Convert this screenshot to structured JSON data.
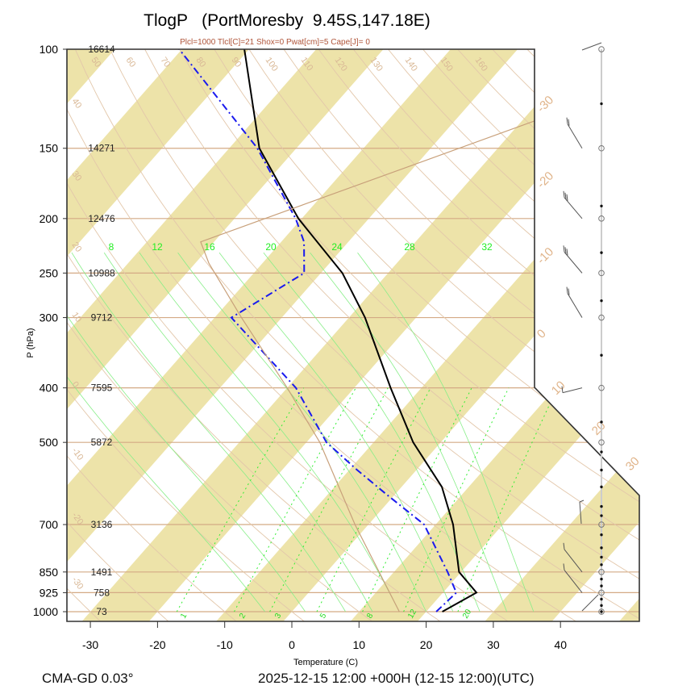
{
  "chart_data": {
    "type": "line",
    "title": "TlogP   (PortMoresby  9.45S,147.18E)",
    "subtitle": "Plcl=1000 Tlcl[C]=21 Shox=0 Pwat[cm]=5 Cape[J]= 0",
    "xlabel": "Temperature (C)",
    "ylabel": "P (hPa)",
    "xlim": [
      -35,
      50
    ],
    "ylim": [
      1000,
      100
    ],
    "y_scale": "log",
    "x_ticks": [
      -30,
      -20,
      -10,
      0,
      10,
      20,
      30,
      40
    ],
    "y_ticks": [
      100,
      150,
      200,
      250,
      300,
      400,
      500,
      700,
      850,
      925,
      1000
    ],
    "heights": [
      {
        "p": 100,
        "z": "16614"
      },
      {
        "p": 150,
        "z": "14271"
      },
      {
        "p": 200,
        "z": "12476"
      },
      {
        "p": 250,
        "z": "10988"
      },
      {
        "p": 300,
        "z": "9712"
      },
      {
        "p": 400,
        "z": "7595"
      },
      {
        "p": 500,
        "z": "5872"
      },
      {
        "p": 700,
        "z": "3136"
      },
      {
        "p": 850,
        "z": "1491"
      },
      {
        "p": 925,
        "z": "758"
      },
      {
        "p": 1000,
        "z": "73"
      }
    ],
    "series": [
      {
        "name": "Temperature",
        "color": "#000000",
        "style": "solid",
        "points": [
          {
            "p": 1000,
            "t": 22.4
          },
          {
            "p": 925,
            "t": 25.0
          },
          {
            "p": 850,
            "t": 19.7
          },
          {
            "p": 700,
            "t": 12.6
          },
          {
            "p": 600,
            "t": 6.0
          },
          {
            "p": 500,
            "t": -4.1
          },
          {
            "p": 400,
            "t": -14.6
          },
          {
            "p": 300,
            "t": -27.6
          },
          {
            "p": 250,
            "t": -36.8
          },
          {
            "p": 200,
            "t": -50.5
          },
          {
            "p": 150,
            "t": -65.5
          },
          {
            "p": 100,
            "t": -80.7
          }
        ]
      },
      {
        "name": "Dewpoint",
        "color": "#1a1aee",
        "style": "dash-dot",
        "points": [
          {
            "p": 1000,
            "t": 21.5
          },
          {
            "p": 925,
            "t": 22.0
          },
          {
            "p": 850,
            "t": 18.0
          },
          {
            "p": 700,
            "t": 8.3
          },
          {
            "p": 620,
            "t": -1.1
          },
          {
            "p": 560,
            "t": -8.8
          },
          {
            "p": 500,
            "t": -17.0
          },
          {
            "p": 400,
            "t": -28.7
          },
          {
            "p": 300,
            "t": -47.5
          },
          {
            "p": 250,
            "t": -42.5
          },
          {
            "p": 220,
            "t": -46.6
          },
          {
            "p": 200,
            "t": -50.9
          },
          {
            "p": 150,
            "t": -65.8
          },
          {
            "p": 100,
            "t": -90.4
          }
        ]
      },
      {
        "name": "Parcel",
        "color": "#c8a07a",
        "style": "solid",
        "points": [
          {
            "p": 1000,
            "t": 16.0
          },
          {
            "p": 700,
            "t": -2.0
          },
          {
            "p": 500,
            "t": -18.0
          },
          {
            "p": 400,
            "t": -30.0
          },
          {
            "p": 300,
            "t": -46.0
          },
          {
            "p": 240,
            "t": -58.0
          },
          {
            "p": 220,
            "t": -62.0
          },
          {
            "p": 100,
            "t": -8.0
          }
        ]
      }
    ],
    "isotherm_labels_right": [
      "-30",
      "-20",
      "-10",
      "0",
      "10",
      "20",
      "30"
    ],
    "dry_adiabat_labels_top": [
      "50",
      "60",
      "70",
      "80",
      "90",
      "100",
      "110",
      "120",
      "130",
      "140",
      "150",
      "160"
    ],
    "dry_adiabat_labels_left": [
      "40",
      "30",
      "20",
      "10",
      "0",
      "-10",
      "-20",
      "-30"
    ],
    "moist_adiabat_labels": [
      "8",
      "12",
      "16",
      "20",
      "24",
      "28",
      "32"
    ],
    "mixing_ratio_labels": [
      "1",
      "2",
      "3",
      "5",
      "8",
      "12",
      "20"
    ],
    "wind_barbs": [
      {
        "p": 100,
        "barbs": "light"
      },
      {
        "p": 150,
        "barbs": "double"
      },
      {
        "p": 200,
        "barbs": "triple"
      },
      {
        "p": 250,
        "barbs": "triple"
      },
      {
        "p": 300,
        "barbs": "double"
      },
      {
        "p": 400,
        "barbs": "none"
      },
      {
        "p": 500,
        "barbs": "light"
      },
      {
        "p": 700,
        "barbs": "light"
      },
      {
        "p": 850,
        "barbs": "single"
      },
      {
        "p": 925,
        "barbs": "single"
      },
      {
        "p": 1000,
        "barbs": "none"
      }
    ],
    "colors": {
      "band": "#ede3a9",
      "isobar": "#d4aa85",
      "adiabat": "#e3c7aa",
      "moist": "#88ee88",
      "mixing": "#33ee33"
    }
  },
  "footer": {
    "model": "CMA-GD 0.03°",
    "time": "2025-12-15 12:00 +000H (12-15 12:00)(UTC)"
  }
}
